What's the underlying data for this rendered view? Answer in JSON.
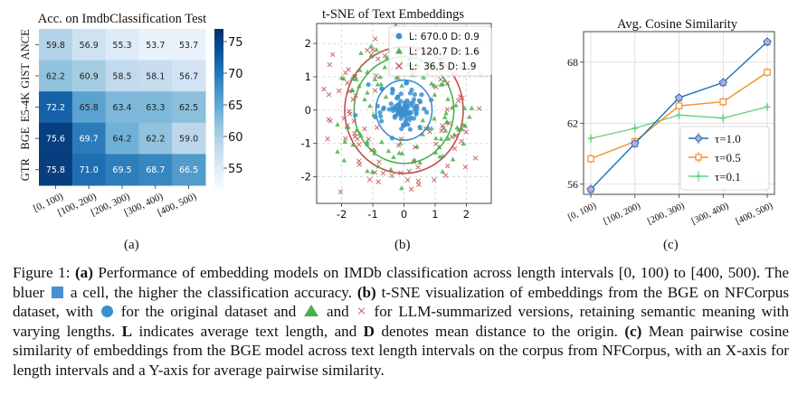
{
  "chart_data": [
    {
      "type": "heatmap",
      "title": "Acc. on ImdbClassification Test",
      "rows": [
        "ANCE",
        "GIST",
        "E5-4K",
        "BGE",
        "GTR"
      ],
      "columns": [
        "[0, 100)",
        "[100, 200)",
        "[200, 300)",
        "[300, 400)",
        "[400, 500)"
      ],
      "values": [
        [
          59.8,
          56.9,
          55.3,
          53.7,
          53.7
        ],
        [
          62.2,
          60.9,
          58.5,
          58.1,
          56.7
        ],
        [
          72.2,
          65.8,
          63.4,
          63.3,
          62.5
        ],
        [
          75.6,
          69.7,
          64.2,
          62.2,
          59.0
        ],
        [
          75.8,
          71.0,
          69.5,
          68.7,
          66.5
        ]
      ],
      "colorbar": {
        "range": [
          52,
          77
        ],
        "ticks": [
          55,
          60,
          65,
          70,
          75
        ],
        "colormap": "Blues"
      }
    },
    {
      "type": "scatter",
      "title": "t-SNE of Text Embeddings",
      "xlim": [
        -2.8,
        2.8
      ],
      "ylim": [
        -2.8,
        2.6
      ],
      "xticks": [
        -2,
        -1,
        0,
        1,
        2
      ],
      "yticks": [
        -2,
        -1,
        0,
        1,
        2
      ],
      "grid": true,
      "legend_position": "top-right",
      "series": [
        {
          "name": "L: 670.0 D: 0.9",
          "marker": "circle",
          "color": "#3a8fd0",
          "cluster_mean_radius": 0.9,
          "approx_points": 110
        },
        {
          "name": "L: 120.7 D: 1.6",
          "marker": "triangle",
          "color": "#4bb04b",
          "cluster_mean_radius": 1.6,
          "approx_points": 110
        },
        {
          "name": "L:  36.5 D: 1.9",
          "marker": "x",
          "color": "#c0504f",
          "cluster_mean_radius": 1.9,
          "approx_points": 110
        }
      ],
      "circles": [
        {
          "radius": 0.9,
          "color": "#3a8fd0"
        },
        {
          "radius": 1.6,
          "color": "#4bb04b"
        },
        {
          "radius": 1.9,
          "color": "#c0504f"
        }
      ]
    },
    {
      "type": "line",
      "title": "Avg. Cosine Similarity",
      "categories": [
        "[0, 100)",
        "[100, 200)",
        "[200, 300)",
        "[300, 400)",
        "[400, 500)"
      ],
      "ylim": [
        55,
        71
      ],
      "yticks": [
        56,
        62,
        68
      ],
      "grid": true,
      "legend_position": "bottom-right",
      "series": [
        {
          "name": "τ=1.0",
          "color": "#1f6fb5",
          "marker": "pentagon",
          "values": [
            55.5,
            60.0,
            64.5,
            66.0,
            70.0
          ]
        },
        {
          "name": "τ=0.5",
          "color": "#f28e2b",
          "marker": "square",
          "values": [
            58.5,
            60.2,
            63.7,
            64.1,
            67.0
          ]
        },
        {
          "name": "τ=0.1",
          "color": "#6ccf7f",
          "marker": "star",
          "values": [
            60.5,
            61.5,
            62.8,
            62.5,
            63.6
          ]
        }
      ]
    }
  ],
  "panel_labels": {
    "a": "(a)",
    "b": "(b)",
    "c": "(c)"
  },
  "caption": {
    "fig_label": "Figure 1:",
    "a_label": "(a)",
    "a_text": "Performance of embedding models on IMDb classification across length intervals [0, 100) to [400, 500). The bluer",
    "a_text2": "a cell, the higher the classification accuracy.",
    "b_label": "(b)",
    "b_text": "t-SNE visualization of embeddings from the BGE on NFCorpus dataset, with",
    "b_text2": "for the original dataset and",
    "b_and": "and",
    "b_text3": "for LLM-summarized versions, retaining semantic meaning with varying lengths.",
    "L_bold": "L",
    "L_text": "indicates average text length, and",
    "D_bold": "D",
    "D_text": "denotes mean distance to the origin.",
    "c_label": "(c)",
    "c_text": "Mean pairwise cosine similarity of embeddings from the BGE model across text length intervals on the corpus from NFCorpus, with an X-axis for length intervals and a Y-axis for average pairwise similarity.",
    "cross_glyph": "×",
    "square_color": "#4a8fcf",
    "dot_color": "#3a8fd0",
    "tri_color": "#4bb04b",
    "x_color": "#c0504f"
  }
}
